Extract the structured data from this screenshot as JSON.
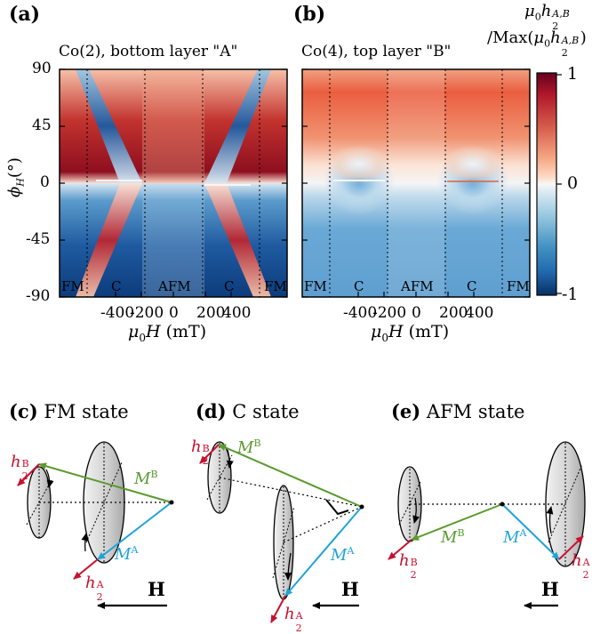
{
  "panels": {
    "a": {
      "letter": "(a)",
      "title": "Co(2), bottom layer \"A\""
    },
    "b": {
      "letter": "(b)",
      "title": "Co(4), top layer \"B\""
    },
    "c": {
      "letter": "(c)",
      "title": "FM state"
    },
    "d": {
      "letter": "(d)",
      "title": "C state"
    },
    "e": {
      "letter": "(e)",
      "title": "AFM state"
    }
  },
  "axes": {
    "ylabel": "ϕH(°)",
    "xlabel": "μ0H (mT)",
    "yticks": [
      "90",
      "45",
      "0",
      "-45",
      "-90"
    ],
    "xticks": [
      "-400",
      "-200",
      "0",
      "200",
      "400"
    ]
  },
  "colorbar": {
    "title_line1": "μ0h2A,B",
    "title_line2": "/Max(μ0h2A,B)",
    "ticks": [
      "1",
      "0",
      "-1"
    ],
    "colors": [
      "#6b0010",
      "#b2182b",
      "#d6604d",
      "#f4a582",
      "#fddbc7",
      "#f7f7f7",
      "#d1e5f0",
      "#92c5de",
      "#4393c3",
      "#2166ac",
      "#0b3a78"
    ]
  },
  "regions": [
    "FM",
    "C",
    "AFM",
    "C",
    "FM"
  ],
  "vectors": {
    "MA": "MA",
    "MB": "MB",
    "h2A": "h2A",
    "h2B": "h2B",
    "H": "H"
  },
  "chart_data": {
    "type": "heatmap",
    "x_range": [
      -600,
      600
    ],
    "y_range": [
      -90,
      90
    ],
    "xlabel": "μ0H (mT)",
    "ylabel": "ϕH(°)",
    "color_range": [
      -1,
      1
    ],
    "colorbar_label": "μ0h2A,B/Max(μ0h2A,B)",
    "region_boundaries_mT": [
      -500,
      -160,
      160,
      500
    ],
    "regions": [
      "FM",
      "C",
      "AFM",
      "C",
      "FM"
    ],
    "maps": [
      {
        "panel": "a",
        "layer": "Co(2), bottom layer A",
        "sign_above_0deg": "positive in FM/C edges, negative in C interior",
        "sign_below_0deg": "negative"
      },
      {
        "panel": "b",
        "layer": "Co(4), top layer B",
        "sign_above_0deg": "positive",
        "sign_below_0deg": "negative"
      }
    ]
  }
}
